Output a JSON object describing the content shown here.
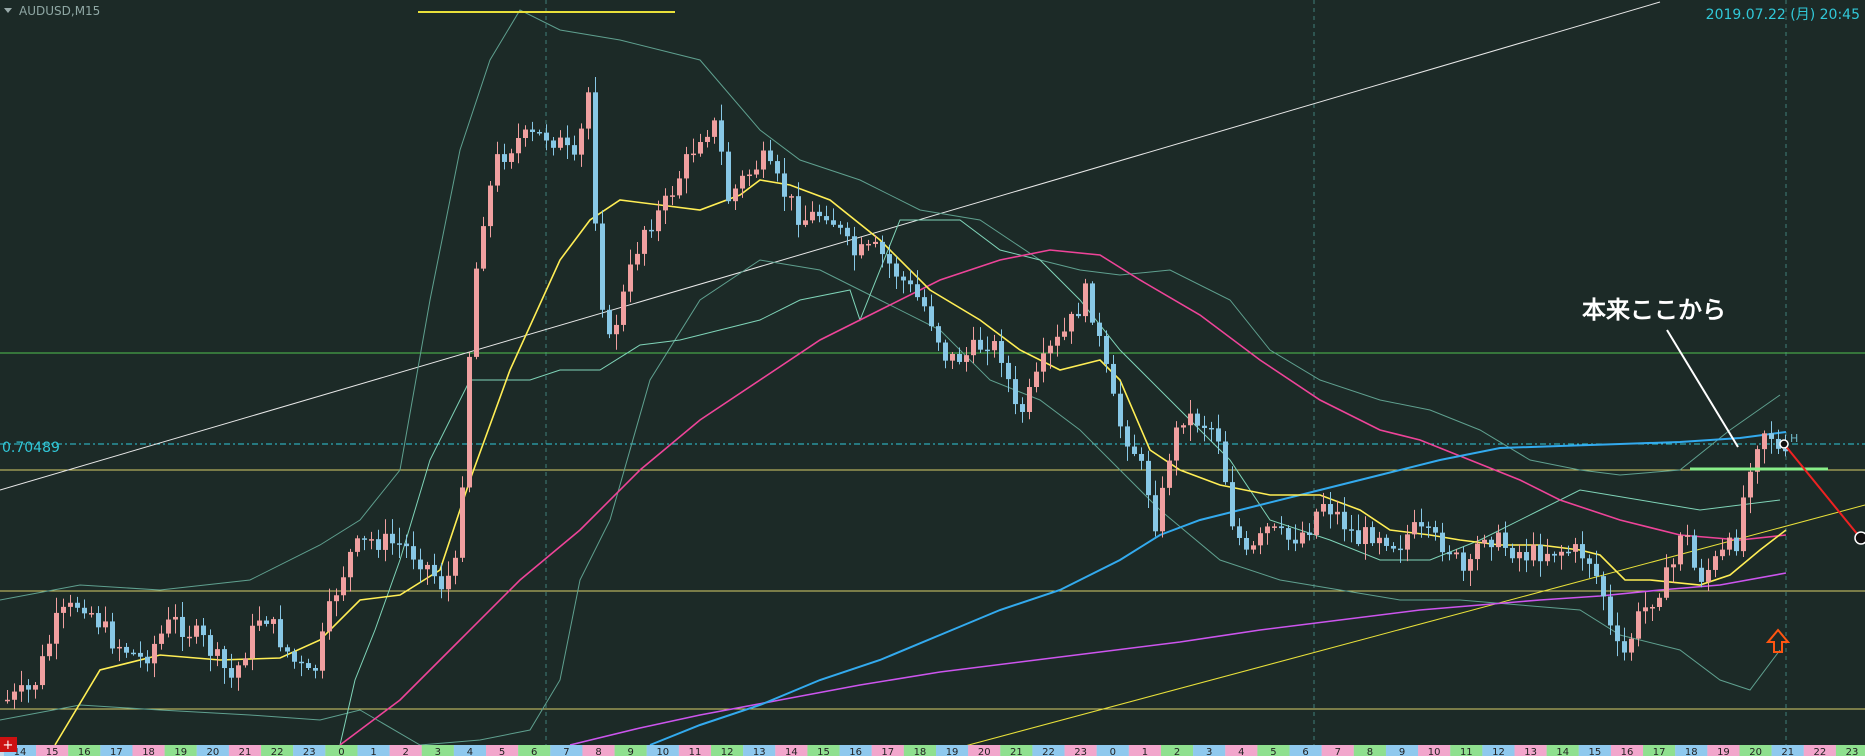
{
  "symbol": "AUDUSD,M15",
  "timestamp": "2019.07.22 (月) 20:45",
  "price_label": "0.70489",
  "annotation": "本来ここから",
  "h_marker": "H",
  "close_button": "+",
  "colors": {
    "background": "#1c2a27",
    "bull_candle": "#f0a0a0",
    "bear_candle": "#88c8e6",
    "ma_yellow": "#ffee55",
    "ma_pink": "#ee4499",
    "ma_blue": "#33aaee",
    "ma_violet": "#cc55ee",
    "bollinger": "#5fa08f",
    "envelope": "#7fd4b8",
    "level_yellow": "#d8cf6a",
    "level_green": "#4fc04f",
    "price_cyan": "#31c8d8",
    "arrow_red": "#ee2222",
    "marker_green": "#88ee88"
  },
  "chart_data": {
    "type": "candlestick",
    "symbol": "AUDUSD",
    "timeframe": "M15",
    "x_ticks": [
      "14",
      "15",
      "16",
      "17",
      "18",
      "19",
      "20",
      "21",
      "22",
      "23",
      "0",
      "1",
      "2",
      "3",
      "4",
      "5",
      "6",
      "7",
      "8",
      "9",
      "10",
      "11",
      "12",
      "13",
      "14",
      "15",
      "16",
      "17",
      "18",
      "19",
      "20",
      "21",
      "22",
      "23",
      "0",
      "1",
      "2",
      "3",
      "4",
      "5",
      "6",
      "7",
      "8",
      "9",
      "10",
      "11",
      "12",
      "13",
      "14",
      "15",
      "16",
      "17",
      "18",
      "19",
      "20",
      "21",
      "22",
      "23"
    ],
    "current_price": 0.70489,
    "drawn_levels": [
      {
        "type": "horizontal",
        "color": "yellow"
      },
      {
        "type": "horizontal",
        "color": "yellow"
      },
      {
        "type": "horizontal",
        "color": "yellow"
      },
      {
        "type": "horizontal",
        "color": "green"
      },
      {
        "type": "horizontal",
        "color": "cyan-dashed",
        "price": 0.70489
      }
    ],
    "trend_lines": [
      "white-rising",
      "yellow-rising"
    ]
  }
}
